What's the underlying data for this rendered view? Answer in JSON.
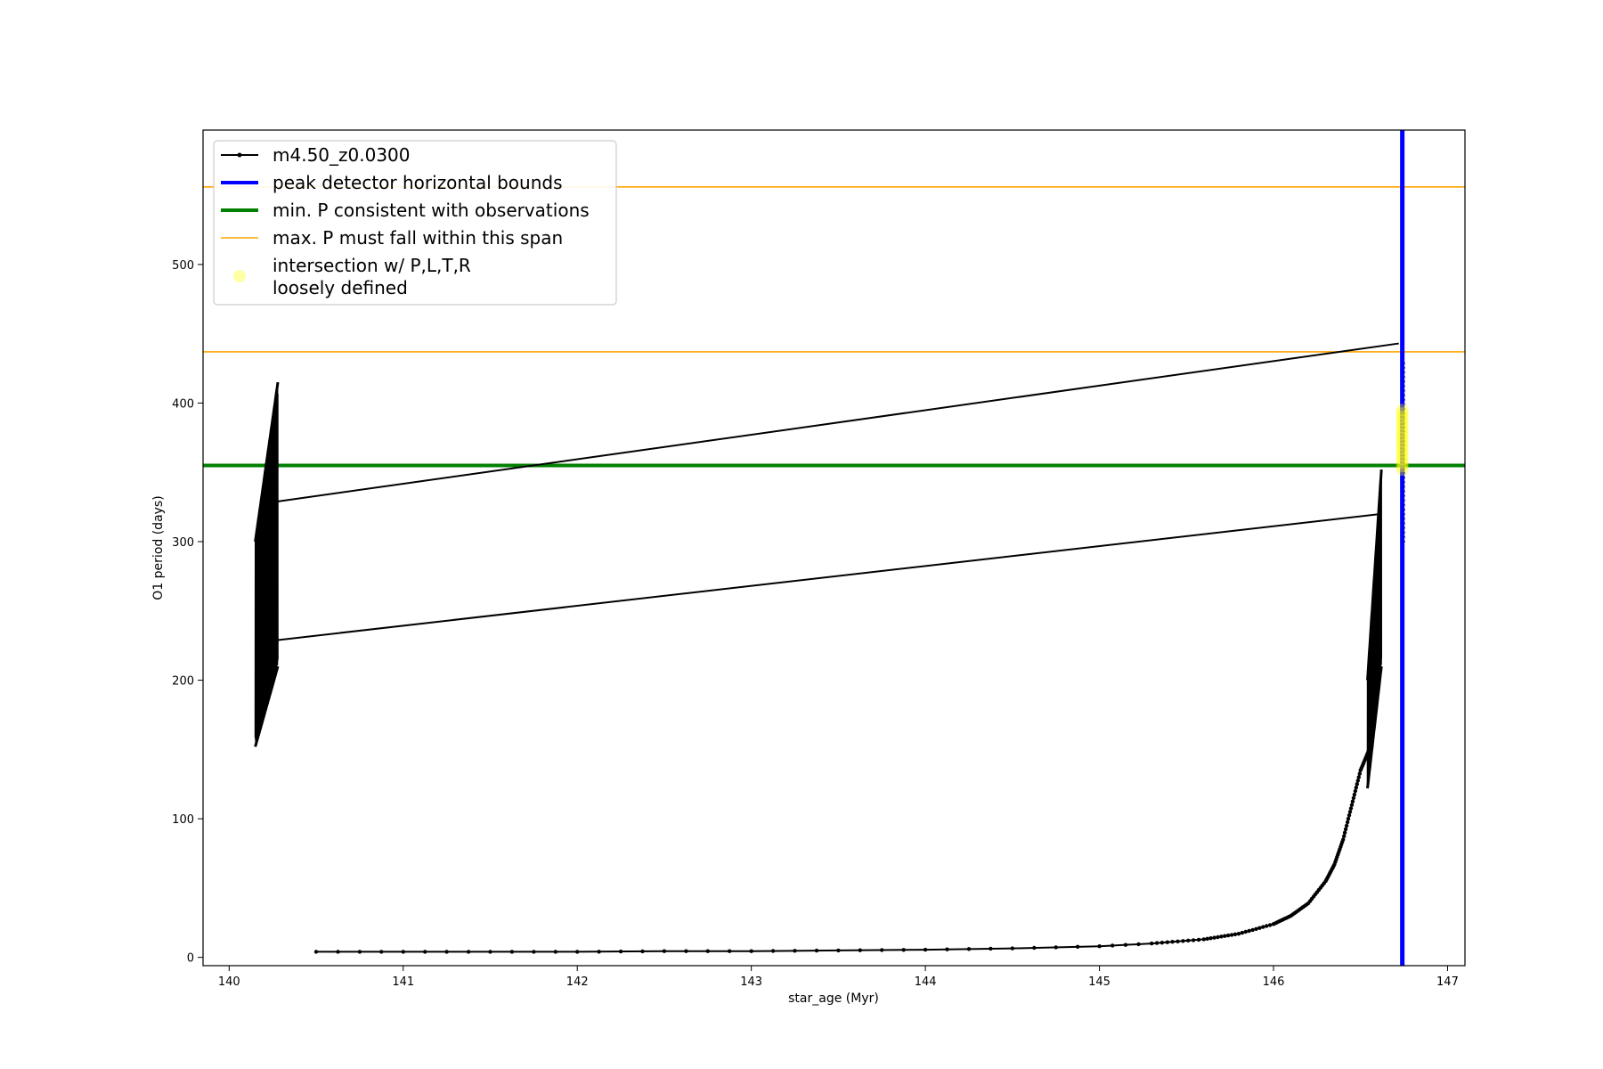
{
  "chart_data": {
    "type": "line",
    "title": "",
    "xlabel": "star_age (Myr)",
    "ylabel": "O1 period (days)",
    "xlim": [
      139.85,
      147.1
    ],
    "ylim": [
      -6,
      597
    ],
    "xticks": [
      140,
      141,
      142,
      143,
      144,
      145,
      146,
      147
    ],
    "yticks": [
      0,
      100,
      200,
      300,
      400,
      500
    ],
    "grid": false,
    "legend_position": "top-left",
    "series": [
      {
        "name": "m4.50_z0.0300",
        "color": "#000000",
        "marker": "dot",
        "segments": [
          {
            "kind": "track",
            "x": [
              140.5,
              141.0,
              141.5,
              142.0,
              142.5,
              143.0,
              143.5,
              144.0,
              144.5,
              145.0,
              145.3,
              145.6,
              145.8,
              146.0,
              146.1,
              146.2,
              146.3,
              146.35,
              146.4,
              146.45,
              146.5,
              146.55
            ],
            "y": [
              4,
              4,
              4,
              4,
              4.5,
              4.5,
              5,
              5.5,
              6.5,
              8,
              10,
              13,
              17,
              24,
              30,
              39,
              55,
              67,
              85,
              110,
              135,
              150
            ]
          },
          {
            "kind": "oscillation-band",
            "x_range": [
              140.15,
              140.28
            ],
            "y_low": [
              152,
              210
            ],
            "y_high": [
              300,
              415
            ]
          },
          {
            "kind": "oscillation-band",
            "x_range": [
              146.54,
              146.62
            ],
            "y_low": [
              122,
              210
            ],
            "y_high": [
              200,
              352
            ]
          },
          {
            "kind": "connector",
            "x": [
              140.28,
              146.72
            ],
            "y": [
              329,
              443
            ]
          },
          {
            "kind": "connector",
            "x": [
              140.28,
              146.62
            ],
            "y": [
              229,
              320
            ]
          }
        ]
      }
    ],
    "reference_lines": [
      {
        "name": "peak detector horizontal bounds",
        "orientation": "vertical",
        "x": 146.74,
        "color": "#0000ff"
      },
      {
        "name": "min. P consistent with observations",
        "orientation": "horizontal",
        "y": 355,
        "color": "#008000"
      },
      {
        "name": "max. P must fall within this span",
        "orientation": "horizontal",
        "y": 437,
        "color": "#ffa500"
      },
      {
        "name": "max. P must fall within this span",
        "orientation": "horizontal",
        "y": 556,
        "color": "#ffa500"
      }
    ],
    "highlight": {
      "name": "intersection w/ P,L,T,R\nloosely defined",
      "x": 146.74,
      "y_range": [
        352,
        395
      ],
      "color": "#ffff00"
    },
    "legend": [
      {
        "label": "m4.50_z0.0300",
        "style": "line-marker",
        "color": "#000000"
      },
      {
        "label": "peak detector horizontal bounds",
        "style": "line-thick",
        "color": "#0000ff"
      },
      {
        "label": "min. P consistent with observations",
        "style": "line-thick",
        "color": "#008000"
      },
      {
        "label": "max. P must fall within this span",
        "style": "line-thin",
        "color": "#ffa500"
      },
      {
        "label": "intersection w/ P,L,T,R\nloosely defined",
        "style": "dot",
        "color": "#ffff00"
      }
    ]
  }
}
